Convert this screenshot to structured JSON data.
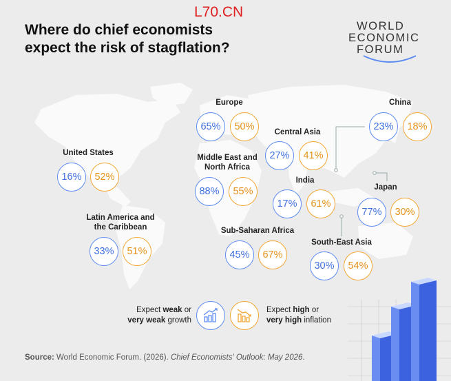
{
  "title_line1": "Where do chief economists",
  "title_line2": "expect the risk of stagflation?",
  "watermark": "L70.CN",
  "logo": {
    "line1": "WORLD",
    "line2": "ECONOMIC",
    "line3": "FORUM"
  },
  "colors": {
    "growth": "#5d8cf0",
    "inflation": "#f2a733",
    "background": "#ececec",
    "map": "#fafafa"
  },
  "chart_data": {
    "type": "table",
    "title": "Where do chief economists expect the risk of stagflation?",
    "series": [
      {
        "name": "Expect weak or very weak growth",
        "unit": "%"
      },
      {
        "name": "Expect high or very high inflation",
        "unit": "%"
      }
    ],
    "regions": [
      {
        "name": "United States",
        "weak_growth": 16,
        "high_inflation": 52,
        "weak_growth_label": "16%",
        "high_inflation_label": "52%"
      },
      {
        "name": "Latin America and the Caribbean",
        "weak_growth": 33,
        "high_inflation": 51,
        "weak_growth_label": "33%",
        "high_inflation_label": "51%"
      },
      {
        "name": "Europe",
        "weak_growth": 65,
        "high_inflation": 50,
        "weak_growth_label": "65%",
        "high_inflation_label": "50%"
      },
      {
        "name": "Middle East and North Africa",
        "weak_growth": 88,
        "high_inflation": 55,
        "weak_growth_label": "88%",
        "high_inflation_label": "55%"
      },
      {
        "name": "Sub-Saharan Africa",
        "weak_growth": 45,
        "high_inflation": 67,
        "weak_growth_label": "45%",
        "high_inflation_label": "67%"
      },
      {
        "name": "Central Asia",
        "weak_growth": 27,
        "high_inflation": 41,
        "weak_growth_label": "27%",
        "high_inflation_label": "41%"
      },
      {
        "name": "India",
        "weak_growth": 17,
        "high_inflation": 61,
        "weak_growth_label": "17%",
        "high_inflation_label": "61%"
      },
      {
        "name": "China",
        "weak_growth": 23,
        "high_inflation": 18,
        "weak_growth_label": "23%",
        "high_inflation_label": "18%"
      },
      {
        "name": "Japan",
        "weak_growth": 77,
        "high_inflation": 30,
        "weak_growth_label": "77%",
        "high_inflation_label": "30%"
      },
      {
        "name": "South-East Asia",
        "weak_growth": 30,
        "high_inflation": 54,
        "weak_growth_label": "30%",
        "high_inflation_label": "54%"
      }
    ]
  },
  "legend": {
    "growth_pre": "Expect ",
    "growth_bold1": "weak",
    "growth_mid": " or",
    "growth_bold2": "very weak",
    "growth_post": " growth",
    "growth_icon": "declining-bar-chart-icon",
    "inflation_pre": "Expect ",
    "inflation_bold1": "high",
    "inflation_mid": " or",
    "inflation_bold2": "very high",
    "inflation_post": " inflation",
    "inflation_icon": "rising-bar-chart-icon"
  },
  "source": {
    "label": "Source:",
    "text": " World Economic Forum. (2026). ",
    "italic": "Chief Economists' Outlook: May 2026",
    "end": "."
  }
}
